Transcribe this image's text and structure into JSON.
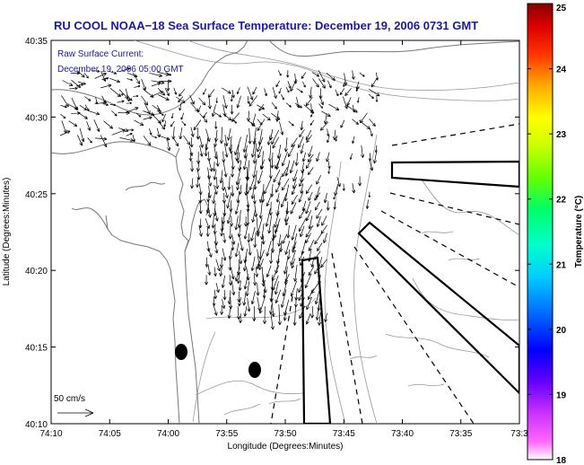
{
  "title": "RU COOL  NOAA−18  Sea Surface Temperature:  December 19, 2006 0731 GMT",
  "annotation": {
    "line1": "Raw Surface Current:",
    "line2": "December 19, 2006 05:00 GMT"
  },
  "scale_label": "50 cm/s",
  "axes": {
    "xlabel": "Longitude (Degrees:Minutes)",
    "ylabel": "Latitude (Degrees:Minutes)",
    "x_ticks": [
      "74:10",
      "74:05",
      "74:00",
      "73:55",
      "73:50",
      "73:45",
      "73:40",
      "73:35",
      "73:3"
    ],
    "y_ticks": [
      "40:35",
      "40:30",
      "40:25",
      "40:20",
      "40:15",
      "40:10"
    ]
  },
  "colorbar": {
    "label": "Temperature (°C)",
    "ticks": [
      "25",
      "24",
      "23",
      "22",
      "21",
      "20",
      "19",
      "18"
    ],
    "range": [
      18,
      25
    ]
  },
  "colors": {
    "title_blue": "#1a1aa0",
    "coast": "#777777",
    "bathy": "#999999",
    "vector": "#000000"
  }
}
